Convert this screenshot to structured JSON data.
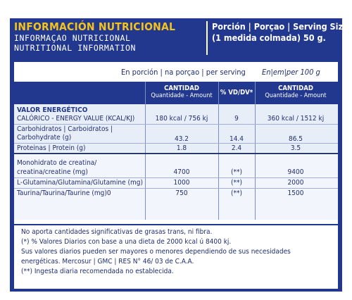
{
  "header": {
    "title": "INFORMACIÓN NUTRICIONAL",
    "subtitle_pt": "INFORMAÇAO NUTRICIONAL",
    "subtitle_en": "NUTRITIONAL INFORMATION",
    "serving_line1": "Porción | Porçao | Serving Size",
    "serving_line2": "(1 medida colmada) 50 g."
  },
  "serving_labels": {
    "per_serving": "En porción | na porçao | per serving",
    "per_100g": "En|em|per 100 g"
  },
  "columns": {
    "amount_title": "CANTIDAD",
    "amount_sub": "Quantidade - Amount",
    "dv": "% VD/DV*",
    "amount100_title": "CANTIDAD",
    "amount100_sub": "Quantidade - Amount"
  },
  "section_energy": "VALOR ENERGÉTICO",
  "rows": [
    {
      "label1": "CALÓRICO - ENERGY VALUE (KCAL/KJ)",
      "label2": "",
      "serving": "180 kcal / 756 kj",
      "dv": "9",
      "per100": "360 kcal / 1512 kj"
    },
    {
      "label1": "Carbohidratos | Carboidratos |",
      "label2": "Carbohydrate (g)",
      "serving": "43.2",
      "dv": "14.4",
      "per100": "86.5"
    },
    {
      "label1": "Proteinas | Protein (g)",
      "label2": "",
      "serving": "1.8",
      "dv": "2.4",
      "per100": "3.5"
    },
    {
      "label1": "Monohidrato de creatina/",
      "label2": "creatina/creatine (mg)",
      "serving": "4700",
      "dv": "(**)",
      "per100": "9400"
    },
    {
      "label1": "L-Glutamina/Glutamina/Glutamine (mg)",
      "label2": "",
      "serving": "1000",
      "dv": "(**)",
      "per100": "2000"
    },
    {
      "label1": "Taurina/Taurina/Taurine (mg)0",
      "label2": "",
      "serving": "750",
      "dv": "(**)",
      "per100": "1500"
    }
  ],
  "footnotes": [
    "No aporta cantidades significativas de grasas trans, ni fibra.",
    "(*) % Valores Diarios con base a una dieta de 2000 kcal ú 8400 kj.",
    "Sus valores diarios pueden ser mayores o menores dependiendo de sus necesidades",
    "energéticas. Mercosur | GMC | RES N° 46/ 03 de C.A.A.",
    "(**) Ingesta diaria recomendada no establecida."
  ]
}
